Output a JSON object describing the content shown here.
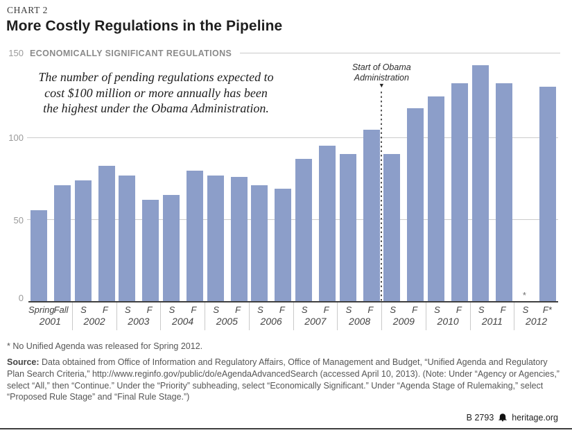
{
  "header": {
    "kicker": "CHART 2",
    "title": "More Costly Regulations in the Pipeline"
  },
  "chart_data": {
    "type": "bar",
    "title": "ECONOMICALLY SIGNIFICANT REGULATIONS",
    "ylim": [
      0,
      150
    ],
    "yticks": [
      0,
      50,
      100,
      150
    ],
    "grid": "horizontal",
    "bar_color": "#8c9ec9",
    "annotation": "The number of pending regulations expected to\ncost $100 million or more annually has been\nthe highest under the Obama Administration.",
    "marker": {
      "label": "Start of Obama\nAdministration",
      "arrow": "▼",
      "after_group_index": 8
    },
    "missing_value_symbol": "*",
    "groups": [
      {
        "year": "2001",
        "labels": [
          "Spring",
          "Fall"
        ],
        "values": [
          56,
          71
        ]
      },
      {
        "year": "2002",
        "labels": [
          "S",
          "F"
        ],
        "values": [
          74,
          83
        ]
      },
      {
        "year": "2003",
        "labels": [
          "S",
          "F"
        ],
        "values": [
          77,
          62
        ]
      },
      {
        "year": "2004",
        "labels": [
          "S",
          "F"
        ],
        "values": [
          65,
          80
        ]
      },
      {
        "year": "2005",
        "labels": [
          "S",
          "F"
        ],
        "values": [
          77,
          76
        ]
      },
      {
        "year": "2006",
        "labels": [
          "S",
          "F"
        ],
        "values": [
          71,
          69
        ]
      },
      {
        "year": "2007",
        "labels": [
          "S",
          "F"
        ],
        "values": [
          87,
          95
        ]
      },
      {
        "year": "2008",
        "labels": [
          "S",
          "F"
        ],
        "values": [
          90,
          105
        ]
      },
      {
        "year": "2009",
        "labels": [
          "S",
          "F"
        ],
        "values": [
          90,
          118
        ]
      },
      {
        "year": "2010",
        "labels": [
          "S",
          "F"
        ],
        "values": [
          125,
          133
        ]
      },
      {
        "year": "2011",
        "labels": [
          "S",
          "F"
        ],
        "values": [
          144,
          133
        ]
      },
      {
        "year": "2012",
        "labels": [
          "S",
          "F*"
        ],
        "values": [
          null,
          131
        ]
      }
    ]
  },
  "footnote": "* No Unified Agenda was released for Spring 2012.",
  "source": {
    "label": "Source:",
    "text": " Data obtained from Office of Information and Regulatory Affairs, Office of Management and Budget, “Unified Agenda and Regulatory Plan Search Criteria,” http://www.reginfo.gov/public/do/eAgendaAdvancedSearch (accessed April 10, 2013). (Note: Under “Agency or Agencies,” select “All,” then “Continue.” Under the “Priority” subheading, select “Economically Significant.” Under “Agenda Stage of Rulemaking,” select “Proposed Rule Stage” and “Final Rule Stage.”)"
  },
  "credit": {
    "id": "B 2793",
    "site": "heritage.org"
  }
}
